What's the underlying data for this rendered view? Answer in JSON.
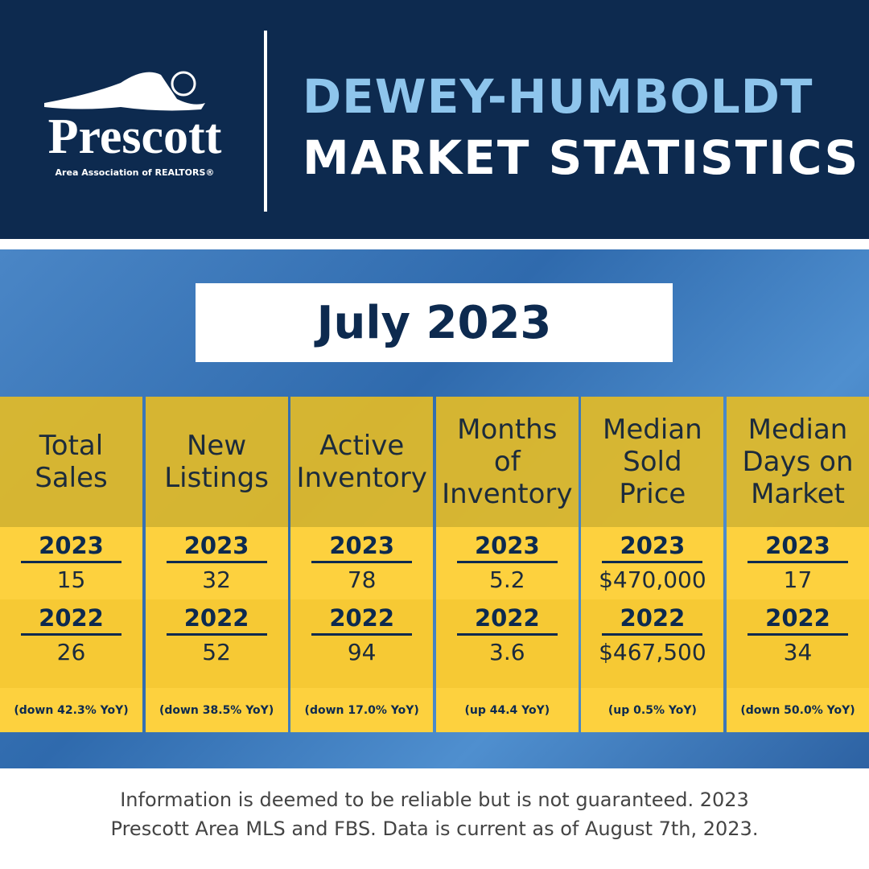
{
  "header": {
    "logo_name": "Prescott",
    "logo_tagline": "Area Association of REALTORS®",
    "title_line1": "DEWEY-HUMBOLDT",
    "title_line2": "MARKET STATISTICS"
  },
  "period": "July 2023",
  "columns": [
    {
      "label": [
        "Total",
        "Sales"
      ],
      "year1": "2023",
      "value1": "15",
      "year2": "2022",
      "value2": "26",
      "change": "(down 42.3% YoY)"
    },
    {
      "label": [
        "New",
        "Listings"
      ],
      "year1": "2023",
      "value1": "32",
      "year2": "2022",
      "value2": "52",
      "change": "(down 38.5% YoY)"
    },
    {
      "label": [
        "Active",
        "Inventory"
      ],
      "year1": "2023",
      "value1": "78",
      "year2": "2022",
      "value2": "94",
      "change": "(down 17.0% YoY)"
    },
    {
      "label": [
        "Months",
        "of",
        "Inventory"
      ],
      "year1": "2023",
      "value1": "5.2",
      "year2": "2022",
      "value2": "3.6",
      "change": "(up 44.4 YoY)"
    },
    {
      "label": [
        "Median",
        "Sold",
        "Price"
      ],
      "year1": "2023",
      "value1": "$470,000",
      "year2": "2022",
      "value2": "$467,500",
      "change": "(up 0.5% YoY)"
    },
    {
      "label": [
        "Median",
        "Days on",
        "Market"
      ],
      "year1": "2023",
      "value1": "17",
      "year2": "2022",
      "value2": "34",
      "change": "(down 50.0% YoY)"
    }
  ],
  "footer": [
    "Information is deemed to be reliable but is not guaranteed. 2023",
    "Prescott Area MLS and FBS. Data is current as of August 7th, 2023."
  ]
}
